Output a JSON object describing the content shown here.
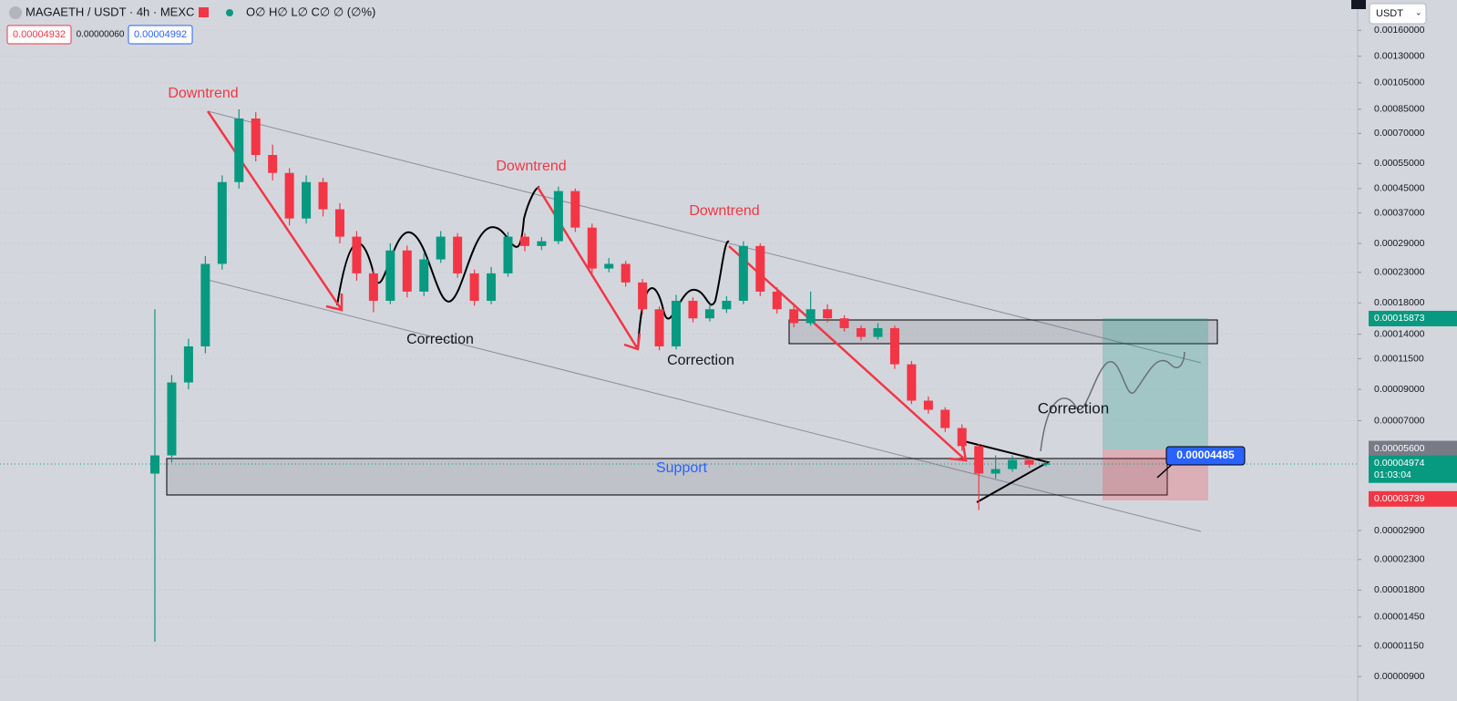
{
  "chart_data": {
    "type": "candlestick",
    "title": "MAGAETH / USDT · 4h · MEXC",
    "ohlc_legend": "O∅ H∅ L∅ C∅ ∅ (∅%)",
    "trade_panel": {
      "sell": "0.00004932",
      "spread": "0.00000060",
      "buy": "0.00004992"
    },
    "currency_menu": "USDT",
    "log_scale": true,
    "grid": true,
    "up_color": "#089981",
    "down_color": "#f23645",
    "open": [
      4.58e-05,
      5.3e-05,
      9.51e-05,
      0.000127,
      0.000246,
      0.000474,
      0.000789,
      0.000589,
      0.00051,
      0.000354,
      0.000474,
      0.000381,
      0.000306,
      0.000228,
      0.000183,
      0.000274,
      0.000197,
      0.000255,
      0.000306,
      0.000228,
      0.000183,
      0.000228,
      0.000306,
      0.000284,
      0.000295,
      0.000441,
      0.000329,
      0.000237,
      0.000246,
      0.000212,
      0.000171,
      0.000127,
      0.000183,
      0.000159,
      0.000171,
      0.000183,
      0.000284,
      0.000197,
      0.000171,
      0.000153,
      0.000171,
      0.000159,
      0.000147,
      0.000137,
      0.000147,
      0.00011,
      8.22e-05,
      7.64e-05,
      6.6e-05,
      5.71e-05,
      4.58e-05,
      4.75e-05,
      5.11e-05,
      4.92e-05
    ],
    "high": [
      0.000171,
      0.000101,
      0.000135,
      0.000262,
      0.0005,
      0.000849,
      0.00083,
      0.00064,
      0.00053,
      0.0005,
      0.00049,
      0.0004,
      0.00032,
      0.000235,
      0.00029,
      0.000285,
      0.000268,
      0.00032,
      0.000315,
      0.000235,
      0.00024,
      0.000318,
      0.000315,
      0.000305,
      0.000457,
      0.00045,
      0.00034,
      0.000258,
      0.000252,
      0.000218,
      0.000175,
      0.000192,
      0.000188,
      0.000178,
      0.00019,
      0.000295,
      0.00029,
      0.000204,
      0.000176,
      0.000197,
      0.000178,
      0.000163,
      0.00015,
      0.000153,
      0.00015,
      0.000113,
      8.5e-05,
      7.8e-05,
      6.8e-05,
      5.8e-05,
      5.3e-05,
      5.3e-05,
      5.2e-05,
      5.05e-05
    ],
    "low": [
      1.19e-05,
      5e-05,
      9e-05,
      0.00012,
      0.000235,
      0.00045,
      0.00056,
      0.00048,
      0.000335,
      0.00034,
      0.00036,
      0.00029,
      0.000215,
      0.000167,
      0.000178,
      0.000188,
      0.00019,
      0.000248,
      0.00022,
      0.000176,
      0.000178,
      0.000222,
      0.000272,
      0.000275,
      0.000288,
      0.000318,
      0.000228,
      0.00023,
      0.000205,
      0.000165,
      0.000123,
      0.000124,
      0.000154,
      0.000155,
      0.000166,
      0.000178,
      0.00019,
      0.000165,
      0.000148,
      0.00015,
      0.000154,
      0.000143,
      0.000133,
      0.000134,
      0.000106,
      8e-05,
      7.4e-05,
      6.4e-05,
      5.5e-05,
      3.42e-05,
      4.4e-05,
      4.65e-05,
      4.8e-05,
      4.85e-05
    ],
    "close": [
      5.3e-05,
      9.51e-05,
      0.000127,
      0.000246,
      0.000474,
      0.000789,
      0.000589,
      0.00051,
      0.000354,
      0.000474,
      0.000381,
      0.000306,
      0.000228,
      0.000183,
      0.000274,
      0.000197,
      0.000255,
      0.000306,
      0.000228,
      0.000183,
      0.000228,
      0.000306,
      0.000284,
      0.000295,
      0.000441,
      0.000329,
      0.000237,
      0.000246,
      0.000212,
      0.000171,
      0.000127,
      0.000183,
      0.000159,
      0.000171,
      0.000183,
      0.000284,
      0.000197,
      0.000171,
      0.000153,
      0.000171,
      0.000159,
      0.000147,
      0.000137,
      0.000147,
      0.00011,
      8.22e-05,
      7.64e-05,
      6.6e-05,
      5.71e-05,
      4.58e-05,
      4.75e-05,
      5.11e-05,
      4.92e-05,
      4.97e-05
    ],
    "ylim": [
      7.4e-06,
      0.00204
    ],
    "yticks": [
      {
        "value": 0.0016,
        "label": "0.00160000"
      },
      {
        "value": 0.0013,
        "label": "0.00130000"
      },
      {
        "value": 0.00105,
        "label": "0.00105000"
      },
      {
        "value": 0.00085,
        "label": "0.00085000"
      },
      {
        "value": 0.0007,
        "label": "0.00070000"
      },
      {
        "value": 0.00055,
        "label": "0.00055000"
      },
      {
        "value": 0.00045,
        "label": "0.00045000"
      },
      {
        "value": 0.00037,
        "label": "0.00037000"
      },
      {
        "value": 0.00029,
        "label": "0.00029000"
      },
      {
        "value": 0.00023,
        "label": "0.00023000"
      },
      {
        "value": 0.00018,
        "label": "0.00018000"
      },
      {
        "value": 0.00014,
        "label": "0.00014000"
      },
      {
        "value": 0.000115,
        "label": "0.00011500"
      },
      {
        "value": 9e-05,
        "label": "0.00009000"
      },
      {
        "value": 7e-05,
        "label": "0.00007000"
      },
      {
        "value": 2.9e-05,
        "label": "0.00002900"
      },
      {
        "value": 2.3e-05,
        "label": "0.00002300"
      },
      {
        "value": 1.8e-05,
        "label": "0.00001800"
      },
      {
        "value": 1.45e-05,
        "label": "0.00001450"
      },
      {
        "value": 1.15e-05,
        "label": "0.00001150"
      },
      {
        "value": 9e-06,
        "label": "0.00000900"
      }
    ],
    "price_tags": [
      {
        "value": 0.00015873,
        "label": "0.00015873",
        "color": "#089981"
      },
      {
        "value": 5.6e-05,
        "label": "0.00005600",
        "color": "#787b86"
      },
      {
        "value": 4.974e-05,
        "label": "0.00004974",
        "color": "#089981",
        "countdown": "01:03:04"
      },
      {
        "value": 3.739e-05,
        "label": "0.00003739",
        "color": "#f23645"
      }
    ],
    "annotations": {
      "downtrend": [
        "Downtrend",
        "Downtrend",
        "Downtrend"
      ],
      "correction": [
        "Correction",
        "Correction",
        "Correction"
      ],
      "support": "Support",
      "callout": "0.00004485"
    }
  }
}
